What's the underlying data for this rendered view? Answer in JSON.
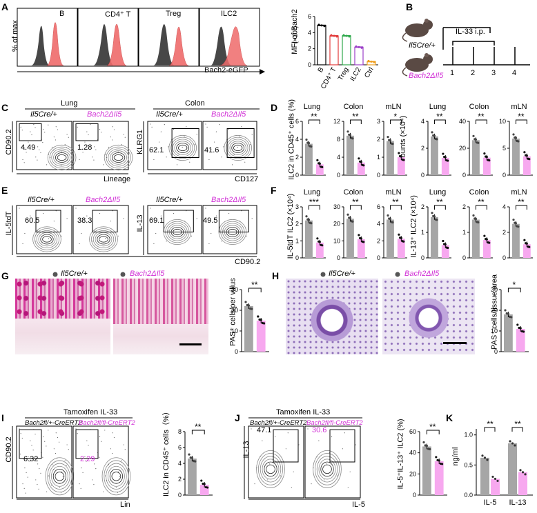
{
  "panels": {
    "A": {
      "label": "A",
      "ylabel": "% of max",
      "hist_titles": [
        "B",
        "CD4⁺ T",
        "Treg",
        "ILC2"
      ],
      "xlabel": "Bach2-eGFP",
      "bar_ylabel": "MFI of Bach2",
      "bar_ylabel_unit": "(×10³)",
      "bar_yticks": [
        "0",
        "2",
        "4",
        "6"
      ],
      "bar_categories": [
        "B",
        "CD4⁺ T",
        "Treg",
        "ILC2",
        "Ctrl"
      ]
    },
    "B": {
      "label": "B",
      "mouse1": "Il5Cre/+",
      "mouse2": "Bach2ΔIl5",
      "treatment": "IL-33 i.p.",
      "days": [
        "1",
        "2",
        "3",
        "4"
      ]
    },
    "C": {
      "label": "C",
      "lung": "Lung",
      "colon": "Colon",
      "ctrl": "Il5Cre/+",
      "ko": "Bach2ΔIl5",
      "y1": "CD90.2",
      "x1": "Lineage",
      "y2": "KLRG1",
      "x2": "CD127",
      "pct": [
        "4.49",
        "1.28",
        "62.1",
        "41.6"
      ]
    },
    "D": {
      "label": "D",
      "ylabel1": "ILC2 in CD45⁺ cells (%)",
      "ylabel2": "Counts (×10⁴)",
      "titles": [
        "Lung",
        "Colon",
        "mLN",
        "Lung",
        "Colon",
        "mLN"
      ],
      "sig": [
        "**",
        "**",
        "*",
        "**",
        "**",
        "**"
      ]
    },
    "E": {
      "label": "E",
      "ctrl": "Il5Cre/+",
      "ko": "Bach2ΔIl5",
      "y1": "IL-5tdT",
      "y2": "IL-13",
      "x": "CD90.2",
      "pct": [
        "60.5",
        "38.3",
        "69.1",
        "49.5"
      ]
    },
    "F": {
      "label": "F",
      "ylabel1": "IL-5tdT ILC2 (×10⁴)",
      "ylabel2": "IL-13⁺ ILC2 (×10⁴)",
      "titles": [
        "Lung",
        "Colon",
        "mLN",
        "Lung",
        "Colon",
        "mLN"
      ],
      "sig": [
        "***",
        "**",
        "**",
        "**",
        "**",
        "**"
      ]
    },
    "G": {
      "label": "G",
      "legend_ctrl": "Il5Cre/+",
      "legend_ko": "Bach2ΔIl5",
      "ylabel": "PAS⁺ cells/per villus",
      "yticks": [
        "0",
        "10",
        "20",
        "30"
      ],
      "sig": "**"
    },
    "H": {
      "label": "H",
      "legend_ctrl": "Il5Cre/+",
      "legend_ko": "Bach2ΔIl5",
      "ylabel": "PAS⁺ cells/tissue area",
      "yticks": [
        "0",
        "10",
        "20",
        "30"
      ],
      "sig": "*"
    },
    "I": {
      "label": "I",
      "title": "Tamoxifen IL-33",
      "ctrl": "Bach2fl/+-CreERT2",
      "ko": "Bach2fl/fl-CreERT2",
      "y": "CD90.2",
      "x": "Lin",
      "pct": [
        "6.32",
        "2.29"
      ],
      "bar_ylabel": "ILC2 in CD45⁺ cells（%）",
      "yticks": [
        "0",
        "2",
        "4",
        "6",
        "8"
      ],
      "sig": "**"
    },
    "J": {
      "label": "J",
      "title": "Tamoxifen IL-33",
      "ctrl": "Bach2fl/+-CreERT2",
      "ko": "Bach2fl/fl-CreERT2",
      "y": "IL-13",
      "x": "IL-5",
      "pct": [
        "47.1",
        "30.6"
      ],
      "bar_ylabel": "IL-5⁺IL-13⁺ ILC2 (%)",
      "yticks": [
        "0",
        "20",
        "40",
        "60"
      ],
      "sig": "**"
    },
    "K": {
      "label": "K",
      "ylabel": "ng/ml",
      "yticks": [
        "0.0",
        "0.5",
        "1.0"
      ],
      "categories": [
        "IL-5",
        "IL-13"
      ],
      "sig": [
        "**",
        "**"
      ]
    }
  },
  "colors": {
    "ctrl": "#a6a6a6",
    "ko": "#f7a8ef",
    "magenta": "#d12fd6",
    "red_hist": "#ef6b6b"
  },
  "chart_data": [
    {
      "type": "bar",
      "panel": "A",
      "categories": [
        "B",
        "CD4⁺ T",
        "Treg",
        "ILC2",
        "Ctrl"
      ],
      "values": [
        4.9,
        3.6,
        3.6,
        2.2,
        0.4
      ],
      "ylim": [
        0,
        6
      ]
    },
    {
      "type": "bar",
      "panel": "D",
      "categories": [
        "Il5Cre/+",
        "Bach2ΔIl5"
      ],
      "series": [
        {
          "name": "Lung",
          "values": [
            3.5,
            1.2
          ]
        },
        {
          "name": "Colon",
          "values": [
            11.0,
            3.5
          ]
        },
        {
          "name": "mLN",
          "values": [
            1.9,
            1.0
          ]
        },
        {
          "name": "Lung counts",
          "values": [
            3.6,
            1.6
          ]
        },
        {
          "name": "Colon counts",
          "values": [
            26,
            13
          ]
        },
        {
          "name": "mLN counts",
          "values": [
            6.8,
            3.5
          ]
        }
      ]
    },
    {
      "type": "bar",
      "panel": "F",
      "categories": [
        "Il5Cre/+",
        "Bach2ΔIl5"
      ],
      "series": [
        {
          "name": "Lung IL-5",
          "values": [
            2.2,
            0.9
          ]
        },
        {
          "name": "Colon IL-5",
          "values": [
            23,
            11
          ]
        },
        {
          "name": "mLN IL-5",
          "values": [
            6.0,
            3.0
          ]
        },
        {
          "name": "Lung IL-13",
          "values": [
            1.6,
            0.5
          ]
        },
        {
          "name": "Colon IL-13",
          "values": [
            1.5,
            0.7
          ]
        },
        {
          "name": "mLN IL-13",
          "values": [
            4.0,
            1.6
          ]
        }
      ]
    },
    {
      "type": "bar",
      "panel": "G",
      "categories": [
        "Il5Cre/+",
        "Bach2ΔIl5"
      ],
      "values": [
        22,
        15
      ],
      "ylim": [
        0,
        30
      ]
    },
    {
      "type": "bar",
      "panel": "H",
      "categories": [
        "Il5Cre/+",
        "Bach2ΔIl5"
      ],
      "values": [
        18,
        11
      ],
      "ylim": [
        0,
        30
      ]
    },
    {
      "type": "bar",
      "panel": "I",
      "categories": [
        "Bach2fl/+-CreERT2",
        "Bach2fl/fl-CreERT2"
      ],
      "values": [
        4.6,
        1.3
      ],
      "ylim": [
        0,
        8
      ]
    },
    {
      "type": "bar",
      "panel": "J",
      "categories": [
        "Bach2fl/+-CreERT2",
        "Bach2fl/fl-CreERT2"
      ],
      "values": [
        46,
        32
      ],
      "ylim": [
        0,
        60
      ]
    },
    {
      "type": "bar",
      "panel": "K",
      "categories": [
        "IL-5",
        "IL-13"
      ],
      "series": [
        {
          "name": "Bach2fl/+-CreERT2",
          "values": [
            0.62,
            0.86
          ]
        },
        {
          "name": "Bach2fl/fl-CreERT2",
          "values": [
            0.27,
            0.38
          ]
        }
      ],
      "ylim": [
        0,
        1.1
      ]
    }
  ]
}
